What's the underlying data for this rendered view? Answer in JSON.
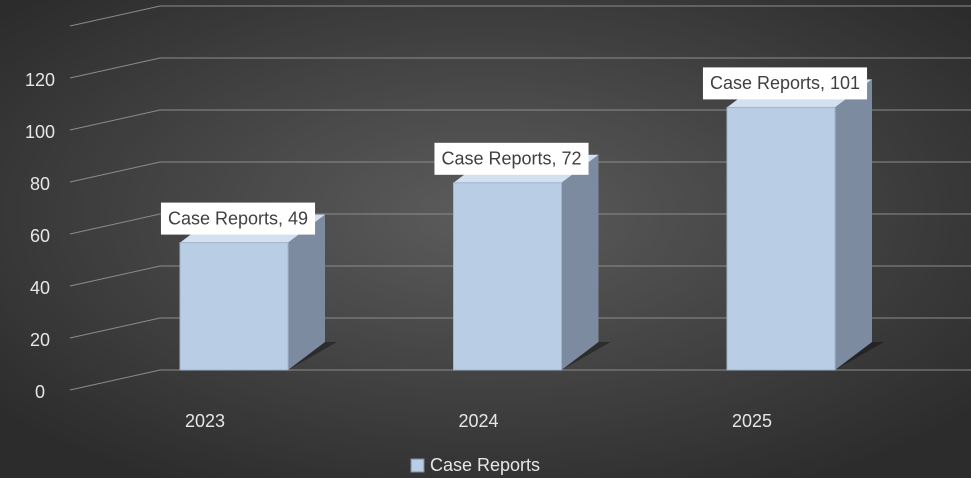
{
  "chart_data": {
    "type": "bar3d",
    "categories": [
      "2023",
      "2024",
      "2025"
    ],
    "series": [
      {
        "name": "Case Reports",
        "color": "#b9cde5",
        "values": [
          49,
          72,
          101
        ],
        "value_labels": [
          "Case Reports, 49",
          "Case Reports, 72",
          "Case Reports, 101"
        ]
      }
    ],
    "ylim": [
      0,
      140
    ],
    "yticks": [
      0,
      20,
      40,
      60,
      80,
      100,
      120
    ],
    "grid": true,
    "legend": "bottom"
  }
}
